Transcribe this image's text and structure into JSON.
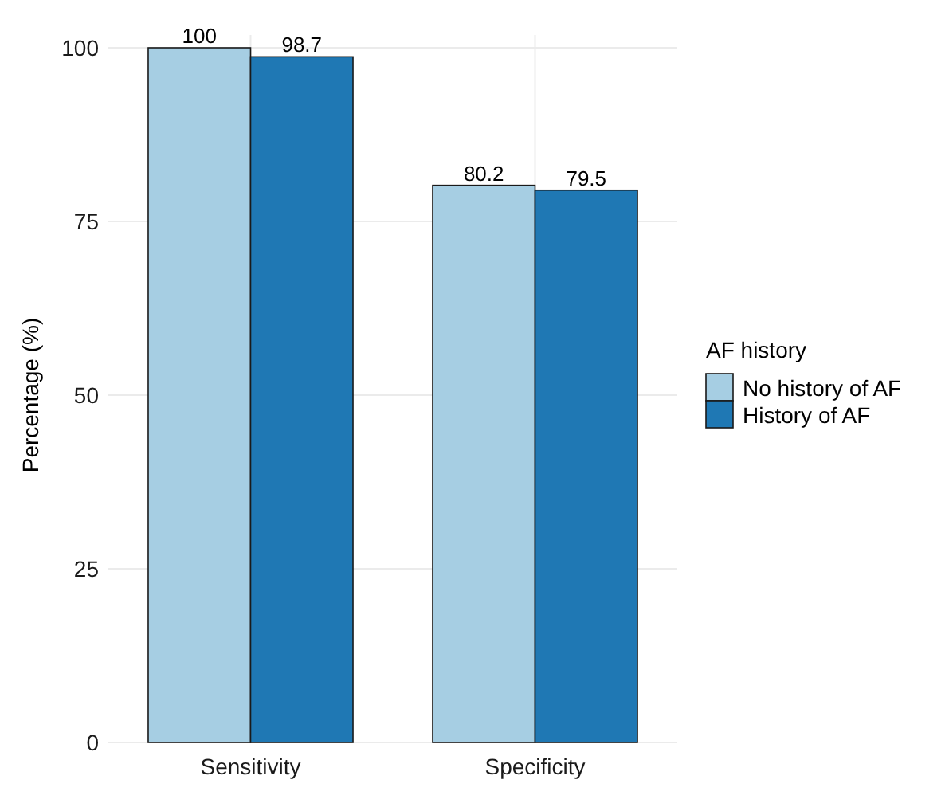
{
  "chart_data": {
    "type": "bar",
    "ylabel": "Percentage (%)",
    "legend_title": "AF history",
    "categories": [
      "Sensitivity",
      "Specificity"
    ],
    "series": [
      {
        "name": "No history of AF",
        "color": "#a6cee3",
        "values": [
          100,
          80.2
        ]
      },
      {
        "name": "History of AF",
        "color": "#1f78b4",
        "values": [
          98.7,
          79.5
        ]
      }
    ],
    "ylim": [
      0,
      100
    ],
    "yticks": [
      0,
      25,
      50,
      75,
      100
    ],
    "grid": true,
    "legend": "right",
    "data_labels": true
  }
}
